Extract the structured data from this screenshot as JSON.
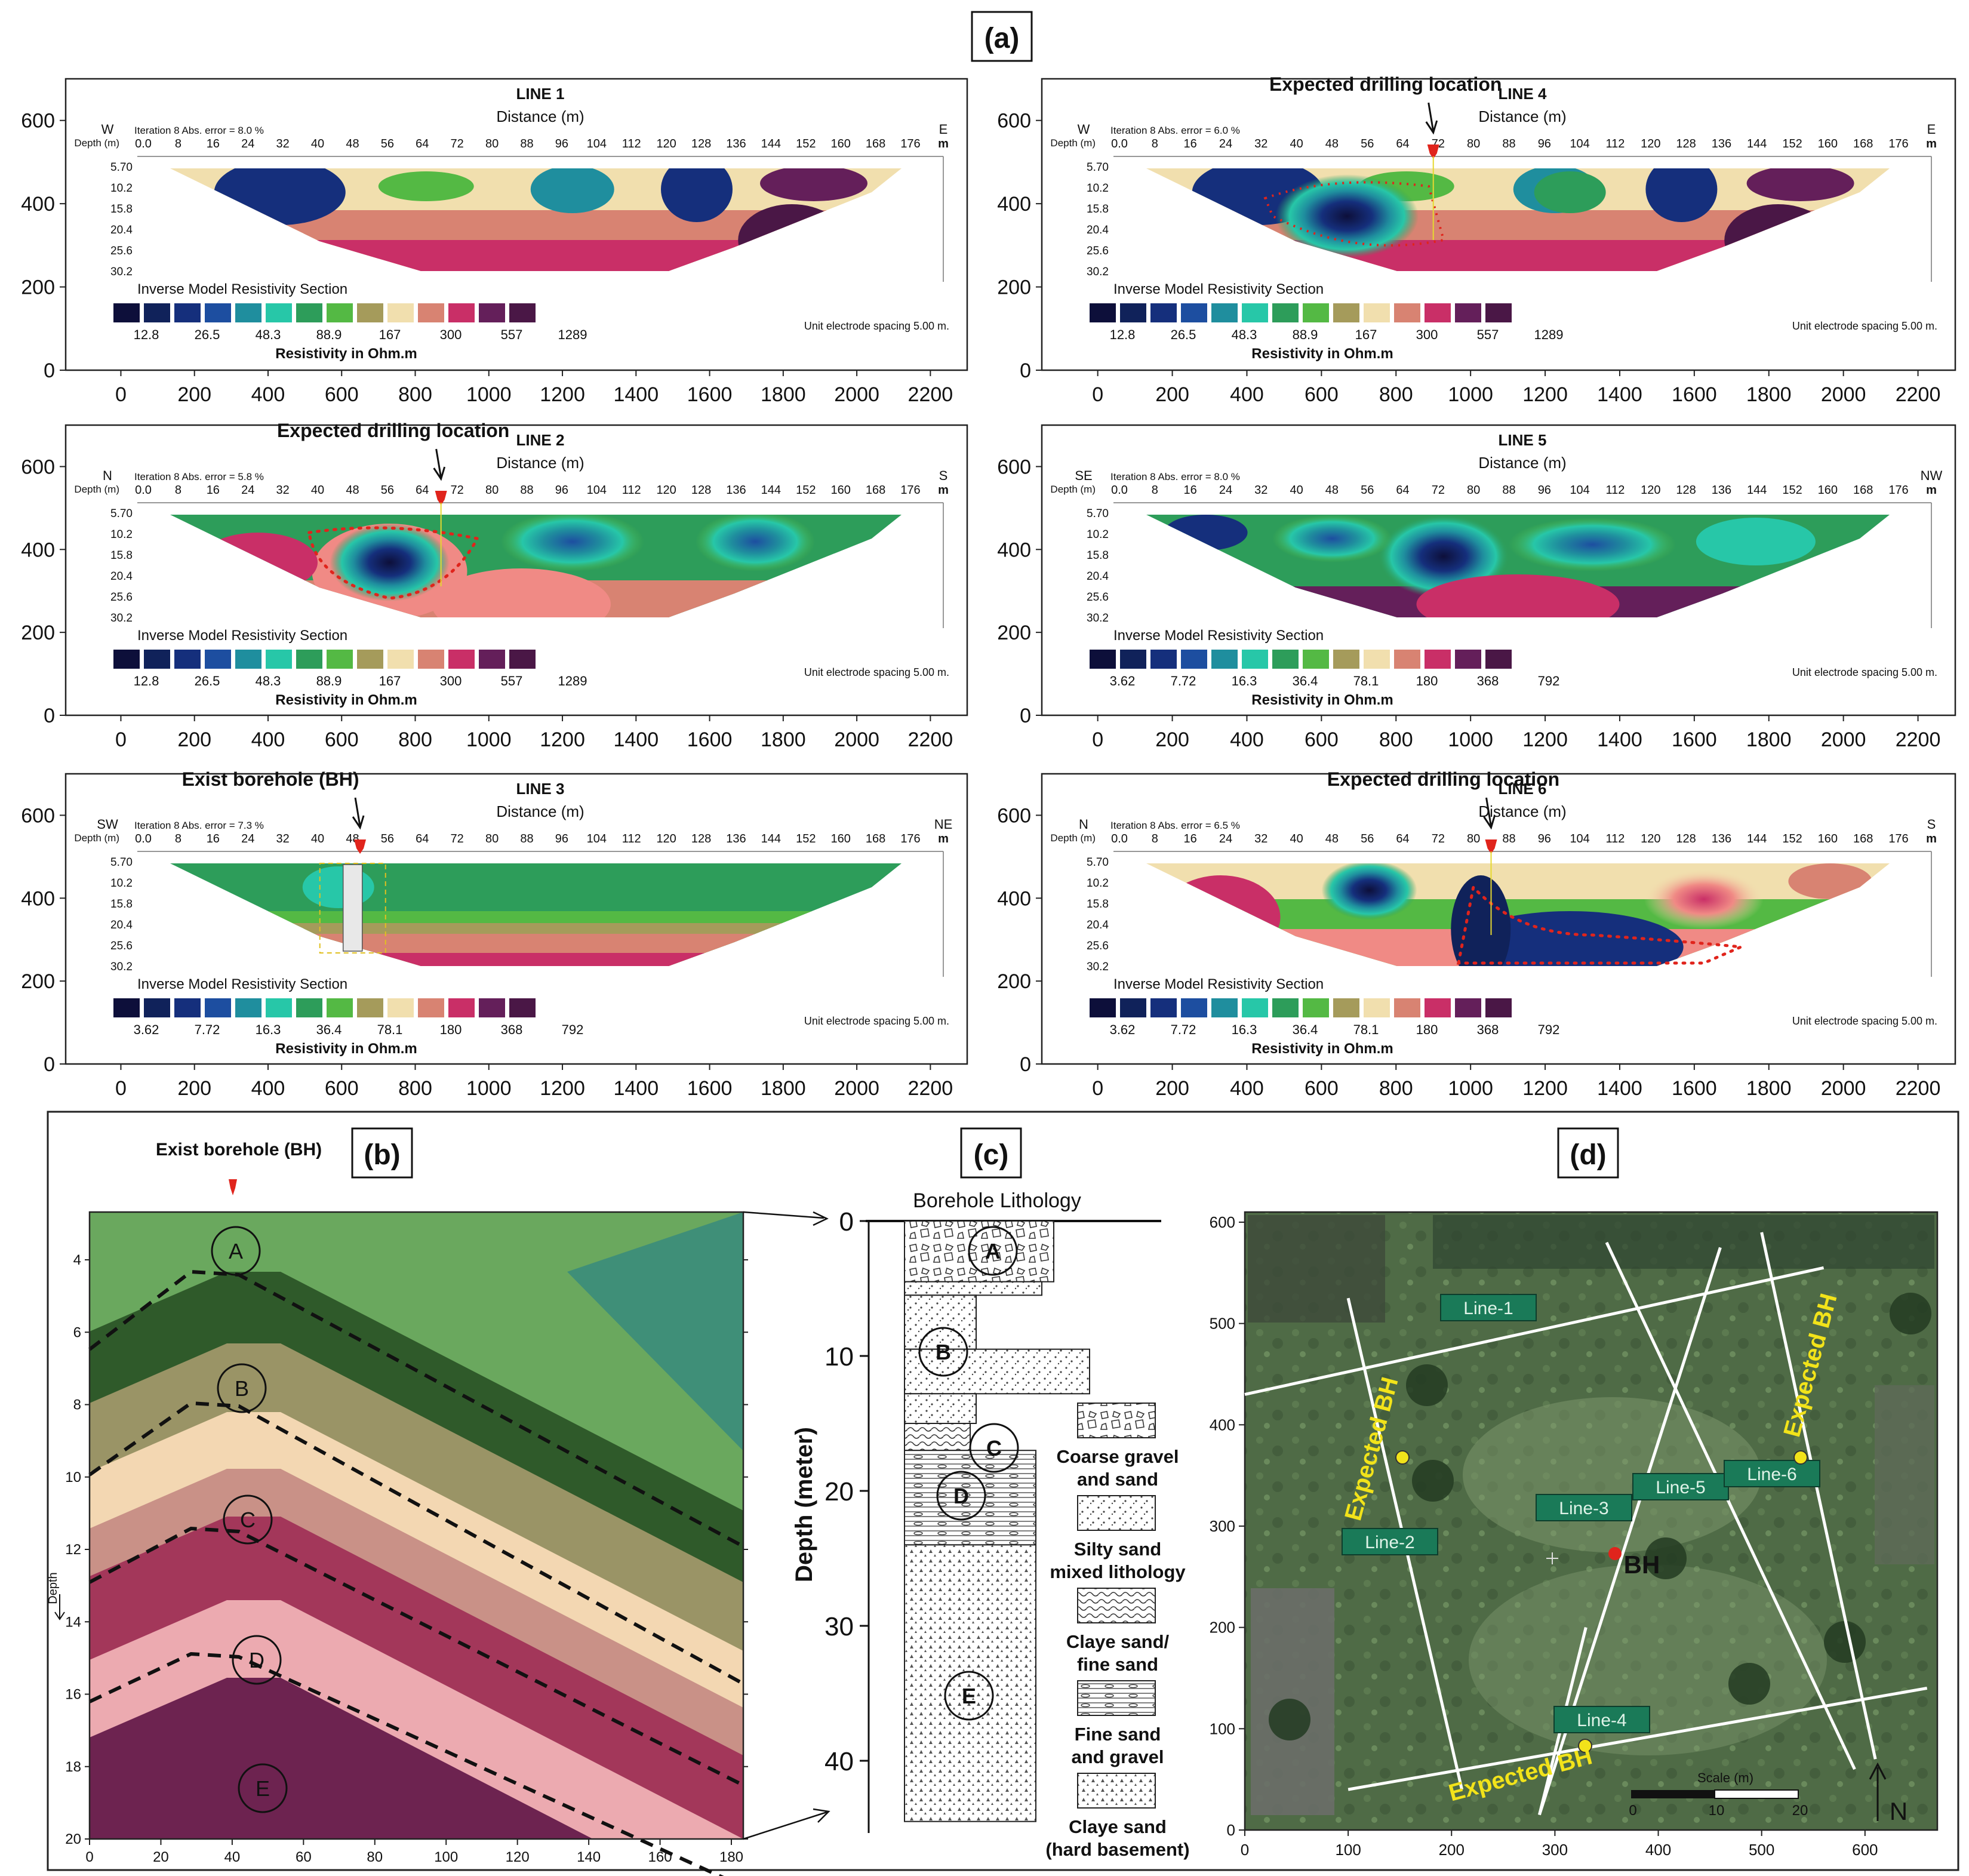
{
  "panel_labels": {
    "a": "(a)",
    "b": "(b)",
    "c": "(c)",
    "d": "(d)"
  },
  "colors": {
    "scale": [
      "#0d0f3a",
      "#10225a",
      "#152f7c",
      "#1d4ea0",
      "#1f8e9e",
      "#27c7a8",
      "#2d9d5a",
      "#54b944",
      "#3a7a2e",
      "#a59b5b",
      "#f1dfae",
      "#d88372",
      "#f08a85",
      "#c92f67",
      "#641f5a",
      "#4a1746",
      "#3d1a40"
    ],
    "accent_red": "#e0241c",
    "label_green": "#1a7a58",
    "label_yellow": "#f2e31a"
  },
  "sections": [
    {
      "title": "LINE 1",
      "left_dir": "W",
      "right_dir": "E",
      "error": "Iteration 8 Abs. error = 8.0 %",
      "legend": [
        "12.8",
        "26.5",
        "48.3",
        "88.9",
        "167",
        "300",
        "557",
        "1289"
      ],
      "annotation": "",
      "ann_x": 0
    },
    {
      "title": "LINE 4",
      "left_dir": "W",
      "right_dir": "E",
      "error": "Iteration 8 Abs. error = 6.0 %",
      "legend": [
        "12.8",
        "26.5",
        "48.3",
        "88.9",
        "167",
        "300",
        "557",
        "1289"
      ],
      "annotation": "Expected drilling location",
      "ann_x": 900
    },
    {
      "title": "LINE 2",
      "left_dir": "N",
      "right_dir": "S",
      "error": "Iteration 8 Abs. error = 5.8 %",
      "legend": [
        "12.8",
        "26.5",
        "48.3",
        "88.9",
        "167",
        "300",
        "557",
        "1289"
      ],
      "annotation": "Expected drilling location",
      "ann_x": 870
    },
    {
      "title": "LINE 5",
      "left_dir": "SE",
      "right_dir": "NW",
      "error": "Iteration 8 Abs. error = 8.0 %",
      "legend": [
        "3.62",
        "7.72",
        "16.3",
        "36.4",
        "78.1",
        "180",
        "368",
        "792"
      ],
      "annotation": "",
      "ann_x": 0
    },
    {
      "title": "LINE 3",
      "left_dir": "SW",
      "right_dir": "NE",
      "error": "Iteration 8 Abs. error = 7.3 %",
      "legend": [
        "3.62",
        "7.72",
        "16.3",
        "36.4",
        "78.1",
        "180",
        "368",
        "792"
      ],
      "annotation": "Exist borehole (BH)",
      "ann_x": 650
    },
    {
      "title": "LINE 6",
      "left_dir": "N",
      "right_dir": "S",
      "error": "Iteration 8 Abs. error = 6.5 %",
      "legend": [
        "3.62",
        "7.72",
        "16.3",
        "36.4",
        "78.1",
        "180",
        "368",
        "792"
      ],
      "annotation": "Expected drilling location",
      "ann_x": 1055
    }
  ],
  "section_common": {
    "distance_label": "Distance (m)",
    "depth_label": "Depth (m)",
    "m_label": "m",
    "distance_ticks": [
      "0.0",
      "8",
      "16",
      "24",
      "32",
      "40",
      "48",
      "56",
      "64",
      "72",
      "80",
      "88",
      "96",
      "104",
      "112",
      "120",
      "128",
      "136",
      "144",
      "152",
      "160",
      "168",
      "176"
    ],
    "depth_ticks": [
      "5.70",
      "10.2",
      "15.8",
      "20.4",
      "25.6",
      "30.2"
    ],
    "model_title": "Inverse Model Resistivity Section",
    "resistivity_label": "Resistivity in Ohm.m",
    "spacing_label": "Unit electrode spacing 5.00 m.",
    "outer_y_ticks": [
      "0",
      "200",
      "400",
      "600"
    ],
    "outer_x_ticks": [
      "0",
      "200",
      "400",
      "600",
      "800",
      "1000",
      "1200",
      "1400",
      "1600",
      "1800",
      "2000",
      "2200"
    ]
  },
  "panel_b": {
    "title": "Exist borehole (BH)",
    "y_label": "Depth",
    "x_ticks": [
      "0",
      "20",
      "40",
      "60",
      "80",
      "100",
      "120",
      "140",
      "160",
      "180"
    ],
    "y_ticks": [
      "4",
      "6",
      "8",
      "10",
      "12",
      "14",
      "16",
      "18",
      "20"
    ],
    "layers": [
      "A",
      "B",
      "C",
      "D",
      "E"
    ]
  },
  "panel_c": {
    "title": "Borehole Lithology",
    "y_label": "Depth (meter)",
    "y_ticks": [
      "0",
      "10",
      "20",
      "30",
      "40"
    ],
    "layers": [
      "A",
      "B",
      "C",
      "D",
      "E"
    ],
    "legend": [
      {
        "line1": "Coarse gravel",
        "line2": "and sand"
      },
      {
        "line1": "Silty sand",
        "line2": "mixed lithology"
      },
      {
        "line1": "Claye sand/",
        "line2": "fine sand"
      },
      {
        "line1": "Fine sand",
        "line2": "and gravel"
      },
      {
        "line1": "Claye sand",
        "line2": "(hard basement)"
      }
    ]
  },
  "panel_d": {
    "x_ticks": [
      "0",
      "100",
      "200",
      "300",
      "400",
      "500",
      "600"
    ],
    "y_ticks": [
      "0",
      "100",
      "200",
      "300",
      "400",
      "500",
      "600"
    ],
    "lines": [
      "Line-1",
      "Line-2",
      "Line-3",
      "Line-4",
      "Line-5",
      "Line-6"
    ],
    "expected": [
      "Expected BH",
      "Expected BH",
      "Expected BH"
    ],
    "bh_label": "BH",
    "scale_title": "Scale (m)",
    "scale_ticks": [
      "0",
      "10",
      "20"
    ],
    "north": "N"
  }
}
